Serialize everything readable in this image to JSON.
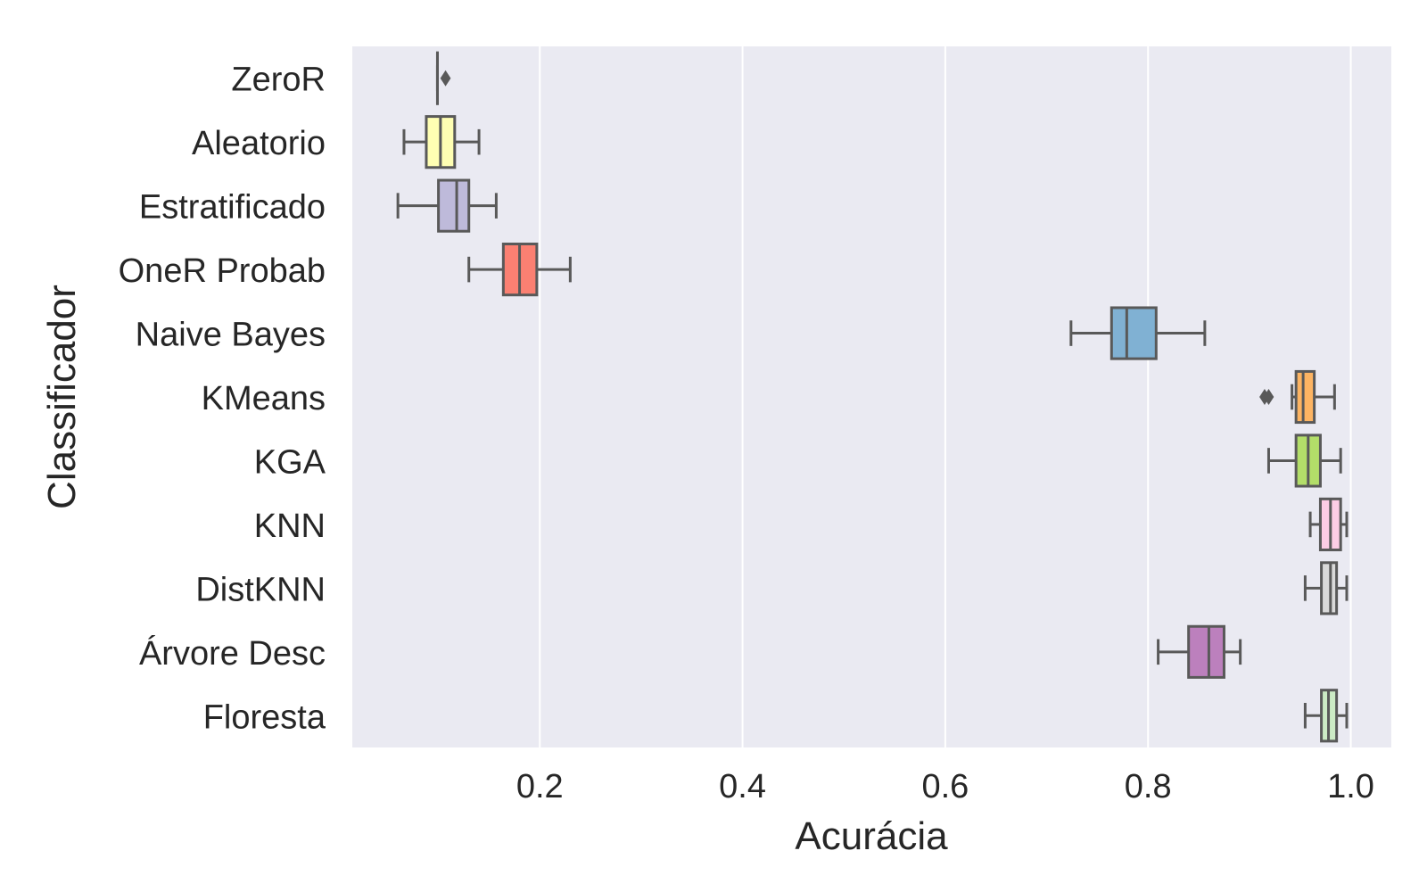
{
  "chart_data": {
    "type": "boxplot",
    "orientation": "horizontal",
    "xlabel": "Acurácia",
    "ylabel": "Classificador",
    "xlim": [
      0.015,
      1.04
    ],
    "xticks": [
      0.2,
      0.4,
      0.6,
      0.8,
      1.0
    ],
    "xtick_labels": [
      "0.2",
      "0.4",
      "0.6",
      "0.8",
      "1.0"
    ],
    "grid": true,
    "grid_axis": "x",
    "background": "#eaeaf2",
    "box_edge_color": "#595959",
    "categories": [
      "ZeroR",
      "Aleatorio",
      "Estratificado",
      "OneR Probab",
      "Naive Bayes",
      "KMeans",
      "KGA",
      "KNN",
      "DistKNN",
      "Árvore Desc",
      "Floresta"
    ],
    "boxes": [
      {
        "label": "ZeroR",
        "whisker_low": 0.099,
        "q1": 0.099,
        "median": 0.099,
        "q3": 0.099,
        "whisker_high": 0.099,
        "outliers": [
          0.107
        ],
        "color": "#8dd3c7"
      },
      {
        "label": "Aleatorio",
        "whisker_low": 0.066,
        "q1": 0.088,
        "median": 0.102,
        "q3": 0.116,
        "whisker_high": 0.14,
        "outliers": [],
        "color": "#ffffb3"
      },
      {
        "label": "Estratificado",
        "whisker_low": 0.06,
        "q1": 0.1,
        "median": 0.118,
        "q3": 0.13,
        "whisker_high": 0.157,
        "outliers": [],
        "color": "#bebada"
      },
      {
        "label": "OneR Probab",
        "whisker_low": 0.13,
        "q1": 0.164,
        "median": 0.18,
        "q3": 0.197,
        "whisker_high": 0.23,
        "outliers": [],
        "color": "#fb8072"
      },
      {
        "label": "Naive Bayes",
        "whisker_low": 0.724,
        "q1": 0.764,
        "median": 0.779,
        "q3": 0.808,
        "whisker_high": 0.856,
        "outliers": [],
        "color": "#80b1d3"
      },
      {
        "label": "KMeans",
        "whisker_low": 0.942,
        "q1": 0.946,
        "median": 0.953,
        "q3": 0.964,
        "whisker_high": 0.984,
        "outliers": [
          0.915,
          0.919
        ],
        "color": "#fdb462"
      },
      {
        "label": "KGA",
        "whisker_low": 0.919,
        "q1": 0.946,
        "median": 0.958,
        "q3": 0.97,
        "whisker_high": 0.99,
        "outliers": [],
        "color": "#b3de69"
      },
      {
        "label": "KNN",
        "whisker_low": 0.96,
        "q1": 0.97,
        "median": 0.98,
        "q3": 0.99,
        "whisker_high": 0.996,
        "outliers": [],
        "color": "#fccde5"
      },
      {
        "label": "DistKNN",
        "whisker_low": 0.955,
        "q1": 0.971,
        "median": 0.98,
        "q3": 0.986,
        "whisker_high": 0.996,
        "outliers": [],
        "color": "#d9d9d9"
      },
      {
        "label": "Árvore Desc",
        "whisker_low": 0.81,
        "q1": 0.84,
        "median": 0.86,
        "q3": 0.875,
        "whisker_high": 0.891,
        "outliers": [],
        "color": "#bc80bd"
      },
      {
        "label": "Floresta",
        "whisker_low": 0.955,
        "q1": 0.971,
        "median": 0.978,
        "q3": 0.986,
        "whisker_high": 0.996,
        "outliers": [],
        "color": "#ccebc5"
      }
    ]
  }
}
